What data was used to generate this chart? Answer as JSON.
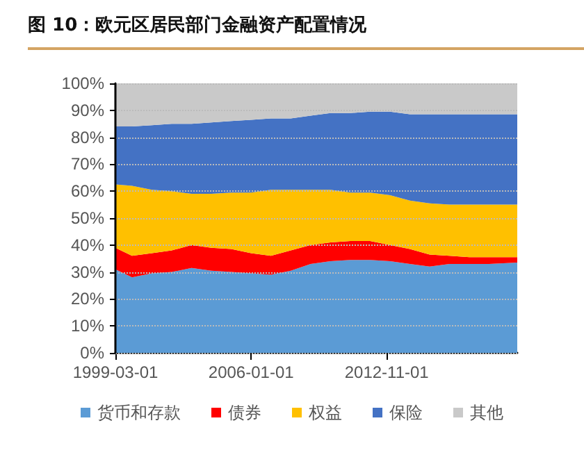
{
  "chart_data": {
    "type": "area",
    "stacked": true,
    "title": "图 10：欧元区居民部门金融资产配置情况",
    "x": [
      "1999-03-01",
      "2000-01-01",
      "2001-01-01",
      "2002-01-01",
      "2003-01-01",
      "2004-01-01",
      "2005-01-01",
      "2006-01-01",
      "2007-01-01",
      "2008-01-01",
      "2009-01-01",
      "2010-01-01",
      "2011-01-01",
      "2012-01-01",
      "2013-01-01",
      "2014-01-01",
      "2015-01-01",
      "2016-01-01",
      "2017-01-01",
      "2018-01-01",
      "2019-06-01"
    ],
    "series": [
      {
        "name": "货币和存款",
        "color": "#5b9bd5",
        "values": [
          31,
          28,
          29.5,
          30,
          31.5,
          30.5,
          30,
          29.5,
          29,
          30.5,
          33,
          34,
          34.5,
          34.5,
          34,
          33,
          32,
          33,
          33,
          33,
          33.5
        ]
      },
      {
        "name": "债券",
        "color": "#ff0000",
        "values": [
          8,
          8,
          7.5,
          8,
          8.5,
          8.5,
          8.5,
          7.5,
          7,
          7.5,
          7,
          7,
          7,
          7,
          6,
          5.5,
          4.5,
          3,
          2.5,
          2.5,
          2
        ]
      },
      {
        "name": "权益",
        "color": "#ffc000",
        "values": [
          23.5,
          26,
          23.5,
          22,
          19,
          20,
          21,
          22.5,
          24.5,
          22.5,
          20.5,
          19.5,
          18,
          18,
          18.5,
          18,
          19,
          19,
          19.5,
          19.5,
          19.5
        ]
      },
      {
        "name": "保险",
        "color": "#4472c4",
        "values": [
          21.5,
          22,
          24,
          25,
          26,
          26.5,
          26.5,
          27,
          26.5,
          26.5,
          27.5,
          28.5,
          29.5,
          30,
          31,
          32,
          33,
          33.5,
          33.5,
          33.5,
          33.5
        ]
      },
      {
        "name": "其他",
        "color": "#c9c9c9",
        "values": [
          16,
          16,
          15.5,
          15,
          15,
          14.5,
          14,
          13.5,
          13,
          13,
          12,
          11,
          11,
          10.5,
          10.5,
          11.5,
          11.5,
          11.5,
          11.5,
          11.5,
          11.5
        ]
      }
    ],
    "xlim": [
      "1999-03-01",
      "2019-06-01"
    ],
    "xticks": [
      "1999-03-01",
      "2006-01-01",
      "2012-11-01"
    ],
    "ylim": [
      0,
      100
    ],
    "yticks": [
      {
        "value": 0,
        "label": "0%"
      },
      {
        "value": 10,
        "label": "10%"
      },
      {
        "value": 20,
        "label": "20%"
      },
      {
        "value": 30,
        "label": "30%"
      },
      {
        "value": 40,
        "label": "40%"
      },
      {
        "value": 50,
        "label": "50%"
      },
      {
        "value": 60,
        "label": "60%"
      },
      {
        "value": 70,
        "label": "70%"
      },
      {
        "value": 80,
        "label": "80%"
      },
      {
        "value": 90,
        "label": "90%"
      },
      {
        "value": 100,
        "label": "100%"
      }
    ],
    "grid": "y",
    "legend": "bottom"
  }
}
